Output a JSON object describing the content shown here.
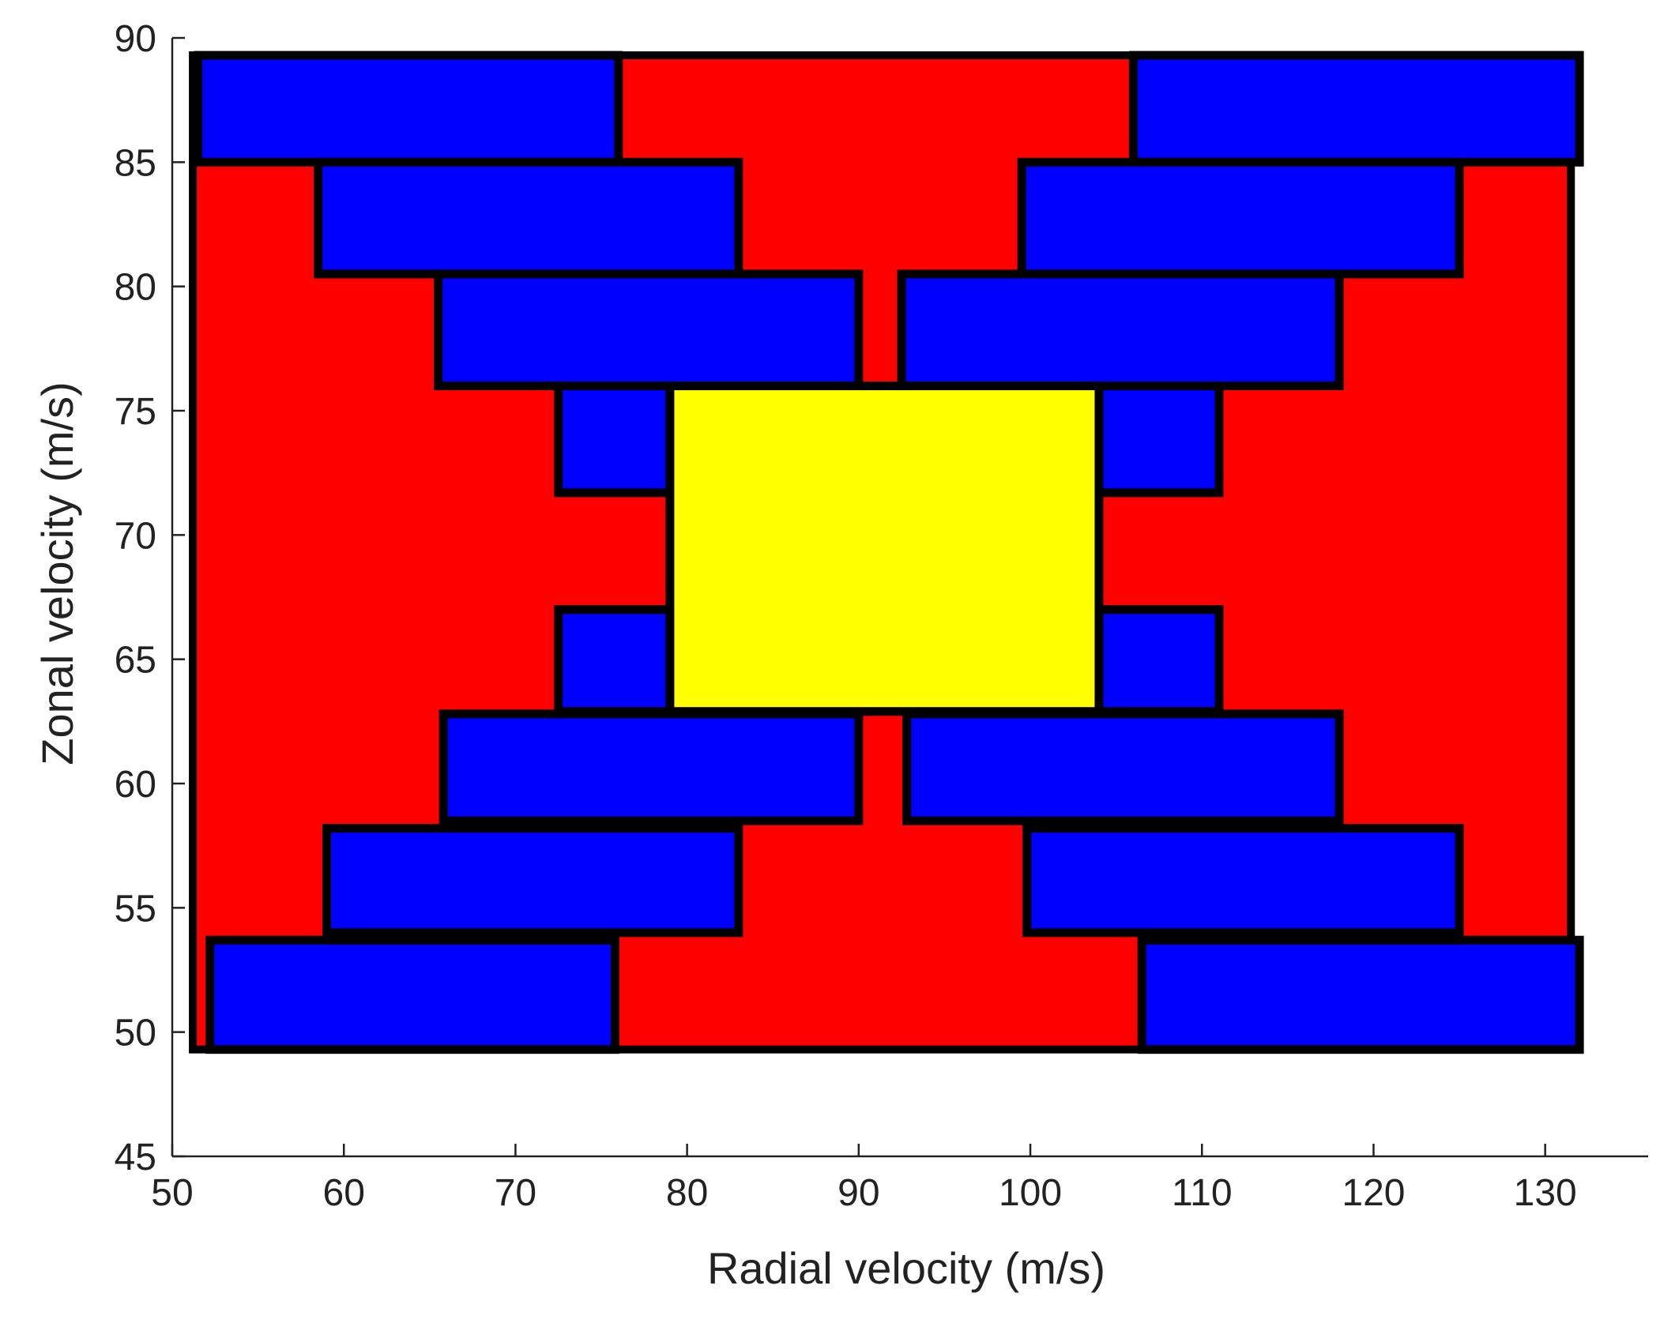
{
  "chart_data": {
    "type": "rectangles",
    "xlabel": "Radial velocity  (m/s)",
    "ylabel": "Zonal velocity  (m/s)",
    "xlim": [
      50,
      136
    ],
    "ylim": [
      45,
      90
    ],
    "xticks": [
      50,
      60,
      70,
      80,
      90,
      100,
      110,
      120,
      130
    ],
    "yticks": [
      45,
      50,
      55,
      60,
      65,
      70,
      75,
      80,
      85,
      90
    ],
    "grid": false,
    "legend": "none",
    "colors": {
      "red": "#ff0000",
      "blue": "#0000ff",
      "yellow": "#ffff00",
      "edge": "#000000"
    },
    "regions": [
      {
        "name": "red-background",
        "fill": "red",
        "x": [
          51.2,
          131.5
        ],
        "y": [
          49.3,
          89.3
        ]
      },
      {
        "name": "blue-top-left-1",
        "fill": "blue",
        "x": [
          51.5,
          76
        ],
        "y": [
          85,
          89.3
        ]
      },
      {
        "name": "blue-top-right-1",
        "fill": "blue",
        "x": [
          106,
          132
        ],
        "y": [
          85,
          89.3
        ]
      },
      {
        "name": "blue-top-left-2",
        "fill": "blue",
        "x": [
          58.5,
          83
        ],
        "y": [
          80.5,
          85
        ]
      },
      {
        "name": "blue-top-right-2",
        "fill": "blue",
        "x": [
          99.5,
          125
        ],
        "y": [
          80.5,
          85
        ]
      },
      {
        "name": "blue-top-left-3",
        "fill": "blue",
        "x": [
          65.5,
          90
        ],
        "y": [
          76,
          80.5
        ]
      },
      {
        "name": "blue-top-right-3",
        "fill": "blue",
        "x": [
          92.5,
          118
        ],
        "y": [
          76,
          80.5
        ]
      },
      {
        "name": "blue-mid-left-upper",
        "fill": "blue",
        "x": [
          72.5,
          79
        ],
        "y": [
          71.7,
          76
        ]
      },
      {
        "name": "blue-mid-right-upper",
        "fill": "blue",
        "x": [
          104,
          111
        ],
        "y": [
          71.7,
          76
        ]
      },
      {
        "name": "blue-mid-left-lower",
        "fill": "blue",
        "x": [
          72.5,
          79
        ],
        "y": [
          62.9,
          67
        ]
      },
      {
        "name": "blue-mid-right-lower",
        "fill": "blue",
        "x": [
          104,
          111
        ],
        "y": [
          62.9,
          67
        ]
      },
      {
        "name": "blue-bottom-left-3",
        "fill": "blue",
        "x": [
          65.8,
          90
        ],
        "y": [
          58.5,
          62.8
        ]
      },
      {
        "name": "blue-bottom-right-3",
        "fill": "blue",
        "x": [
          92.8,
          118
        ],
        "y": [
          58.5,
          62.8
        ]
      },
      {
        "name": "blue-bottom-left-2",
        "fill": "blue",
        "x": [
          59,
          83
        ],
        "y": [
          54,
          58.2
        ]
      },
      {
        "name": "blue-bottom-right-2",
        "fill": "blue",
        "x": [
          99.8,
          125
        ],
        "y": [
          54,
          58.2
        ]
      },
      {
        "name": "blue-bottom-left-1",
        "fill": "blue",
        "x": [
          52.2,
          75.8
        ],
        "y": [
          49.3,
          53.7
        ]
      },
      {
        "name": "blue-bottom-right-1",
        "fill": "blue",
        "x": [
          106.5,
          132
        ],
        "y": [
          49.3,
          53.7
        ]
      },
      {
        "name": "yellow-center",
        "fill": "yellow",
        "x": [
          79,
          104
        ],
        "y": [
          62.9,
          76
        ]
      }
    ]
  }
}
